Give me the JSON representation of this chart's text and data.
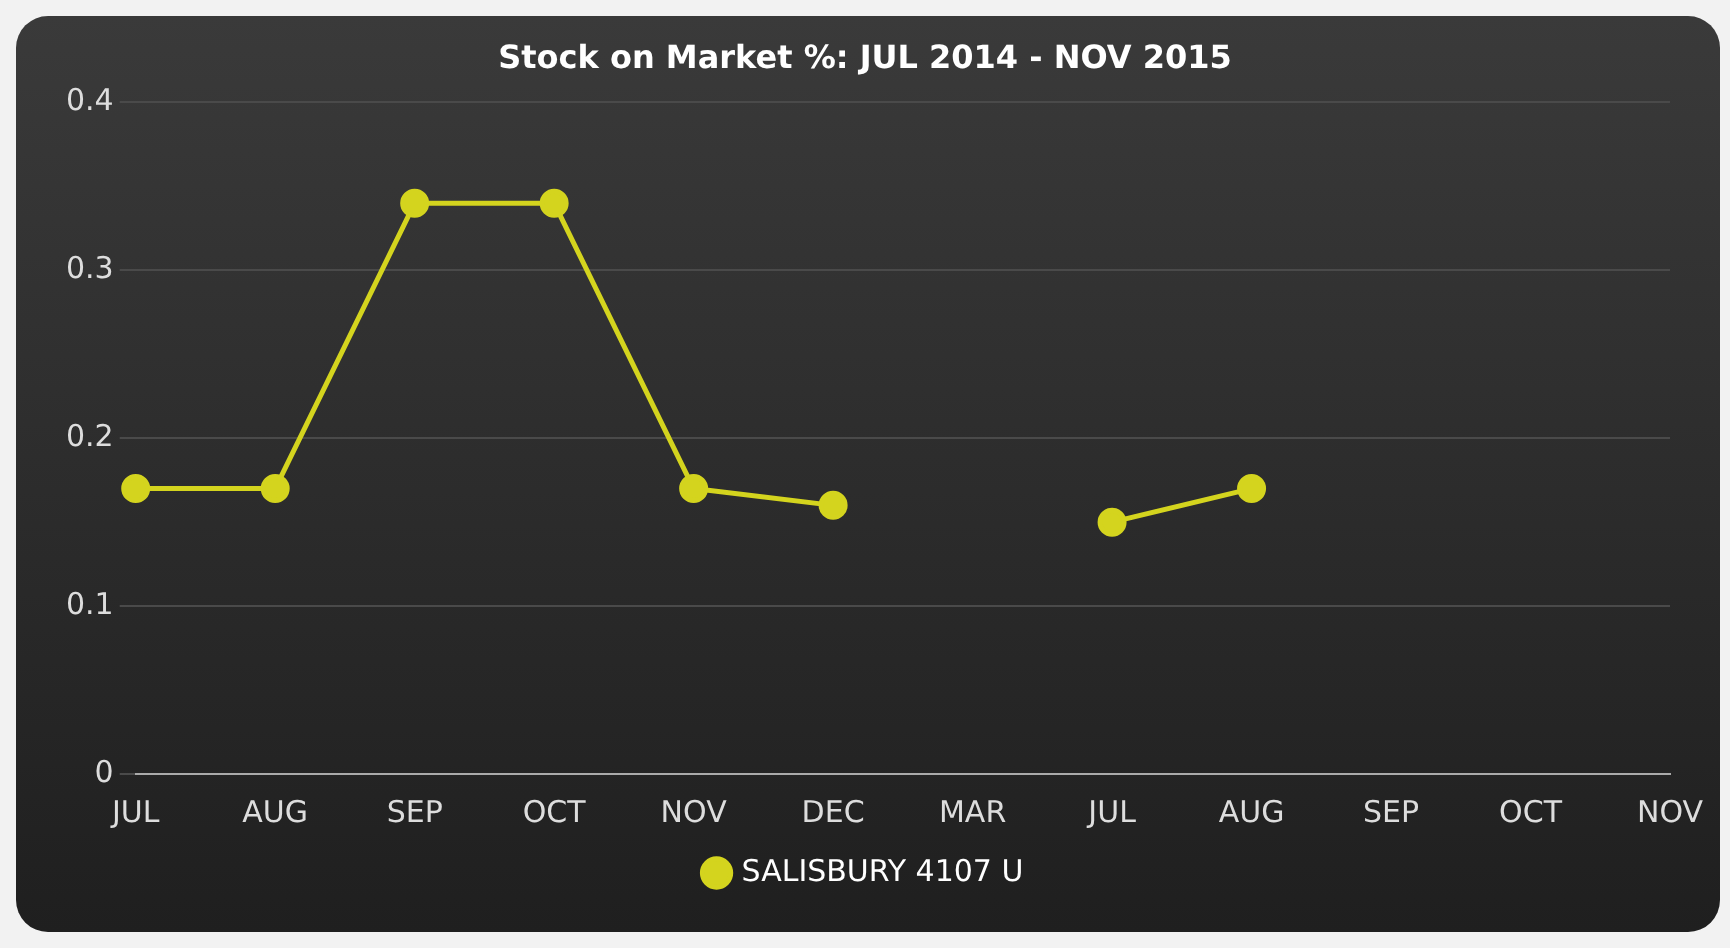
{
  "chart_data": {
    "type": "line",
    "title": "Stock on Market %: JUL 2014 - NOV 2015",
    "categories": [
      "JUL",
      "AUG",
      "SEP",
      "OCT",
      "NOV",
      "DEC",
      "MAR",
      "JUL",
      "AUG",
      "SEP",
      "OCT",
      "NOV"
    ],
    "series": [
      {
        "name": "SALISBURY 4107 U",
        "color": "#d4d41e",
        "values": [
          0.17,
          0.17,
          0.34,
          0.34,
          0.17,
          0.16,
          null,
          0.15,
          0.17,
          null,
          null,
          null
        ]
      }
    ],
    "ylim": [
      0,
      0.4
    ],
    "yticks": [
      0,
      0.1,
      0.2,
      0.3,
      0.4
    ],
    "grid": "y",
    "legend": "bottom",
    "marker": "circle",
    "line_style": "solid"
  }
}
